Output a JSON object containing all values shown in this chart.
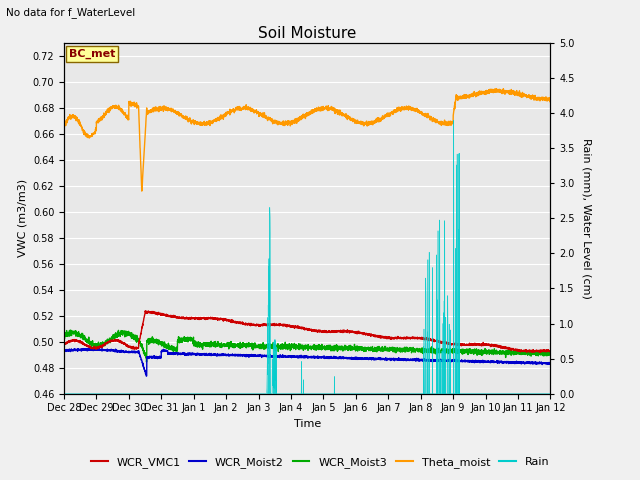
{
  "title": "Soil Moisture",
  "top_left_text": "No data for f_WaterLevel",
  "annotation_text": "BC_met",
  "xlabel": "Time",
  "ylabel_left": "VWC (m3/m3)",
  "ylabel_right": "Rain (mm), Water Level (cm)",
  "ylim_left": [
    0.46,
    0.73
  ],
  "ylim_right": [
    0.0,
    5.0
  ],
  "yticks_left": [
    0.46,
    0.48,
    0.5,
    0.52,
    0.54,
    0.56,
    0.58,
    0.6,
    0.62,
    0.64,
    0.66,
    0.68,
    0.7,
    0.72
  ],
  "yticks_right": [
    0.0,
    0.5,
    1.0,
    1.5,
    2.0,
    2.5,
    3.0,
    3.5,
    4.0,
    4.5,
    5.0
  ],
  "background_color": "#e8e8e8",
  "grid_color": "#ffffff",
  "fig_background": "#f0f0f0",
  "line_colors": {
    "WCR_VMC1": "#cc0000",
    "WCR_Moist2": "#0000cc",
    "WCR_Moist3": "#00aa00",
    "Theta_moist": "#ff9900",
    "Rain": "#00cccc"
  },
  "xtick_labels": [
    "Dec 28",
    "Dec 29",
    "Dec 30",
    "Dec 31",
    "Jan 1",
    "Jan 2",
    "Jan 3",
    "Jan 4",
    "Jan 5",
    "Jan 6",
    "Jan 7",
    "Jan 8",
    "Jan 9",
    "Jan 10",
    "Jan 11",
    "Jan 12"
  ],
  "num_points": 3360,
  "figsize": [
    6.4,
    4.8
  ],
  "dpi": 100
}
